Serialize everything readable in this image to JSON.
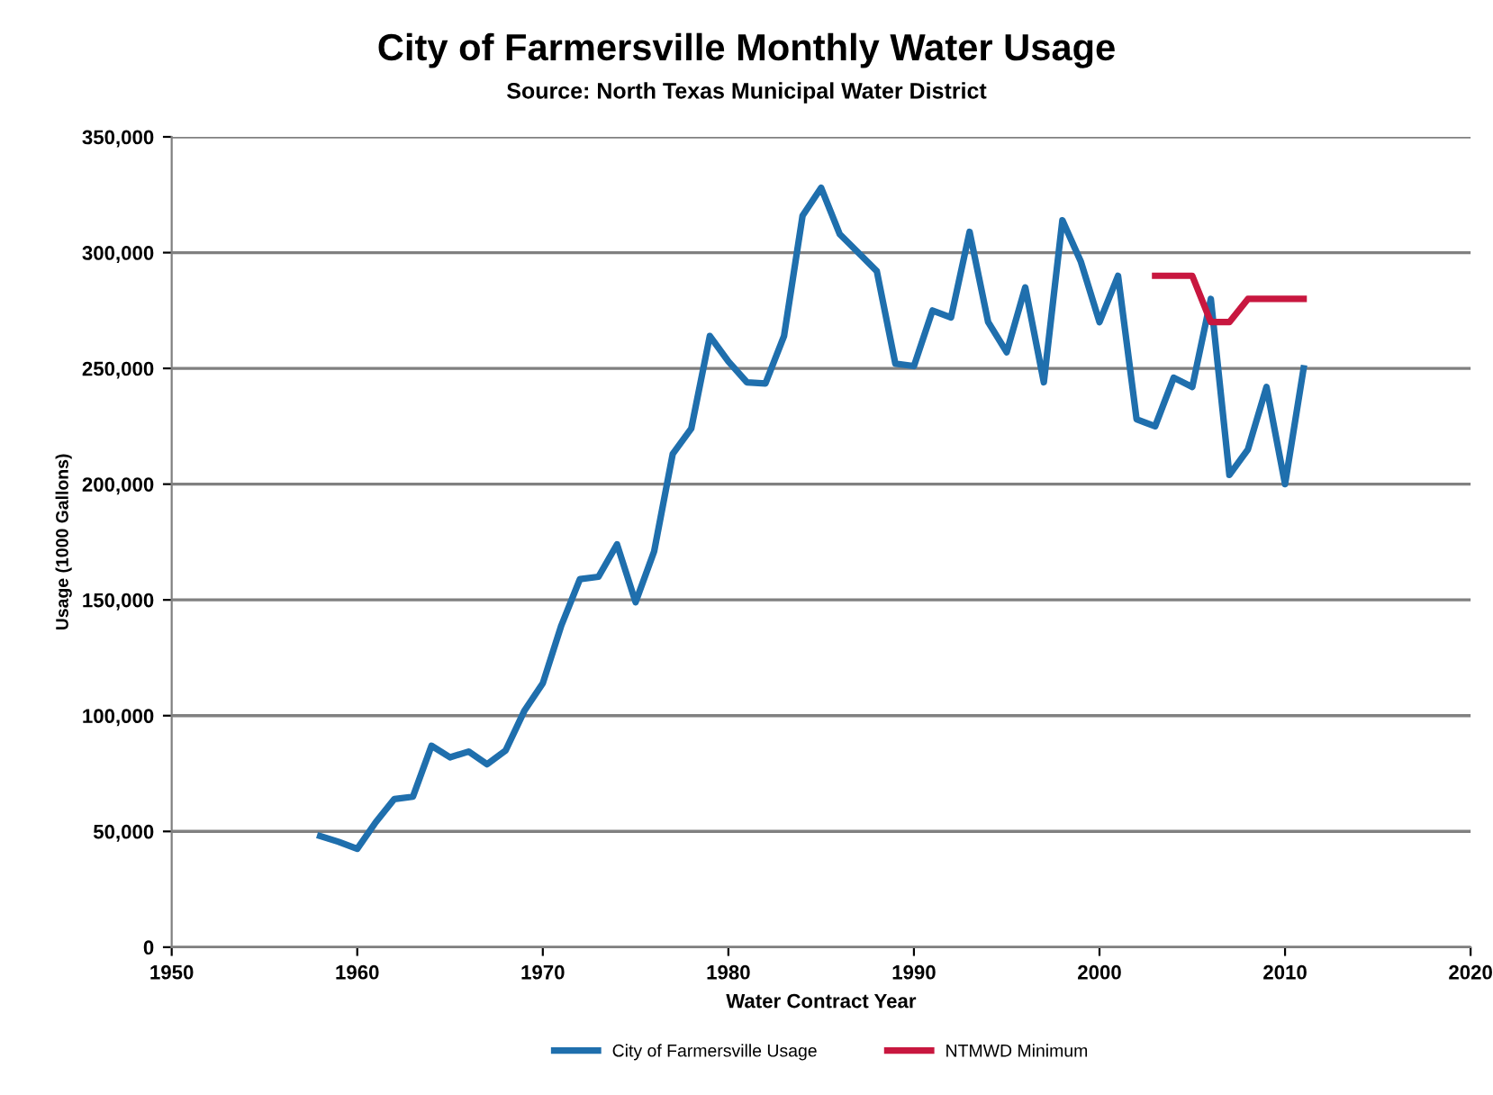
{
  "chart_data": {
    "type": "line",
    "title": "City of Farmersville Monthly Water Usage",
    "subtitle": "Source: North Texas Municipal Water District",
    "xlabel": "Water Contract Year",
    "ylabel": "Usage (1000 Gallons)",
    "xlim": [
      1950,
      2020
    ],
    "xticks": [
      1950,
      1960,
      1970,
      1980,
      1990,
      2000,
      2010,
      2020
    ],
    "ylim": [
      0,
      350000
    ],
    "yticks": [
      {
        "value": 0,
        "label": "0"
      },
      {
        "value": 50000,
        "label": "50,000"
      },
      {
        "value": 100000,
        "label": "100,000"
      },
      {
        "value": 150000,
        "label": "150,000"
      },
      {
        "value": 200000,
        "label": "200,000"
      },
      {
        "value": 250000,
        "label": "250,000"
      },
      {
        "value": 300000,
        "label": "300,000"
      },
      {
        "value": 350000,
        "label": "350,000"
      }
    ],
    "grid": "y",
    "legend": "bottom",
    "marker": "none",
    "line_style": "solid",
    "series": [
      {
        "name": "City of Farmersville Usage",
        "color": "#1f6fad",
        "x": [
          1958,
          1959,
          1960,
          1961,
          1962,
          1963,
          1964,
          1965,
          1966,
          1967,
          1968,
          1969,
          1970,
          1971,
          1972,
          1973,
          1974,
          1975,
          1976,
          1977,
          1978,
          1979,
          1980,
          1981,
          1982,
          1983,
          1984,
          1985,
          1986,
          1987,
          1988,
          1989,
          1990,
          1991,
          1992,
          1993,
          1994,
          1995,
          1996,
          1997,
          1998,
          1999,
          2000,
          2001,
          2002,
          2003,
          2004,
          2005,
          2006,
          2007,
          2008,
          2009,
          2010,
          2011
        ],
        "values": [
          48000,
          45500,
          42500,
          54000,
          64000,
          65000,
          87000,
          82000,
          84500,
          79000,
          85000,
          102000,
          114000,
          139000,
          159000,
          160000,
          174000,
          149000,
          171000,
          213000,
          224000,
          264000,
          253000,
          244000,
          243500,
          264000,
          316000,
          328000,
          308000,
          300000,
          292000,
          252000,
          251000,
          275000,
          272000,
          309000,
          270000,
          257000,
          285000,
          244000,
          314000,
          296000,
          270000,
          290000,
          228000,
          225000,
          246000,
          242000,
          280000,
          204000,
          215000,
          242000,
          200000,
          250000
        ]
      },
      {
        "name": "NTMWD Minimum",
        "color": "#c8173f",
        "x": [
          2003,
          2004,
          2005,
          2006,
          2007,
          2008,
          2009,
          2010,
          2011
        ],
        "values": [
          290000,
          290000,
          290000,
          270000,
          270000,
          280000,
          280000,
          280000,
          280000
        ]
      }
    ]
  }
}
